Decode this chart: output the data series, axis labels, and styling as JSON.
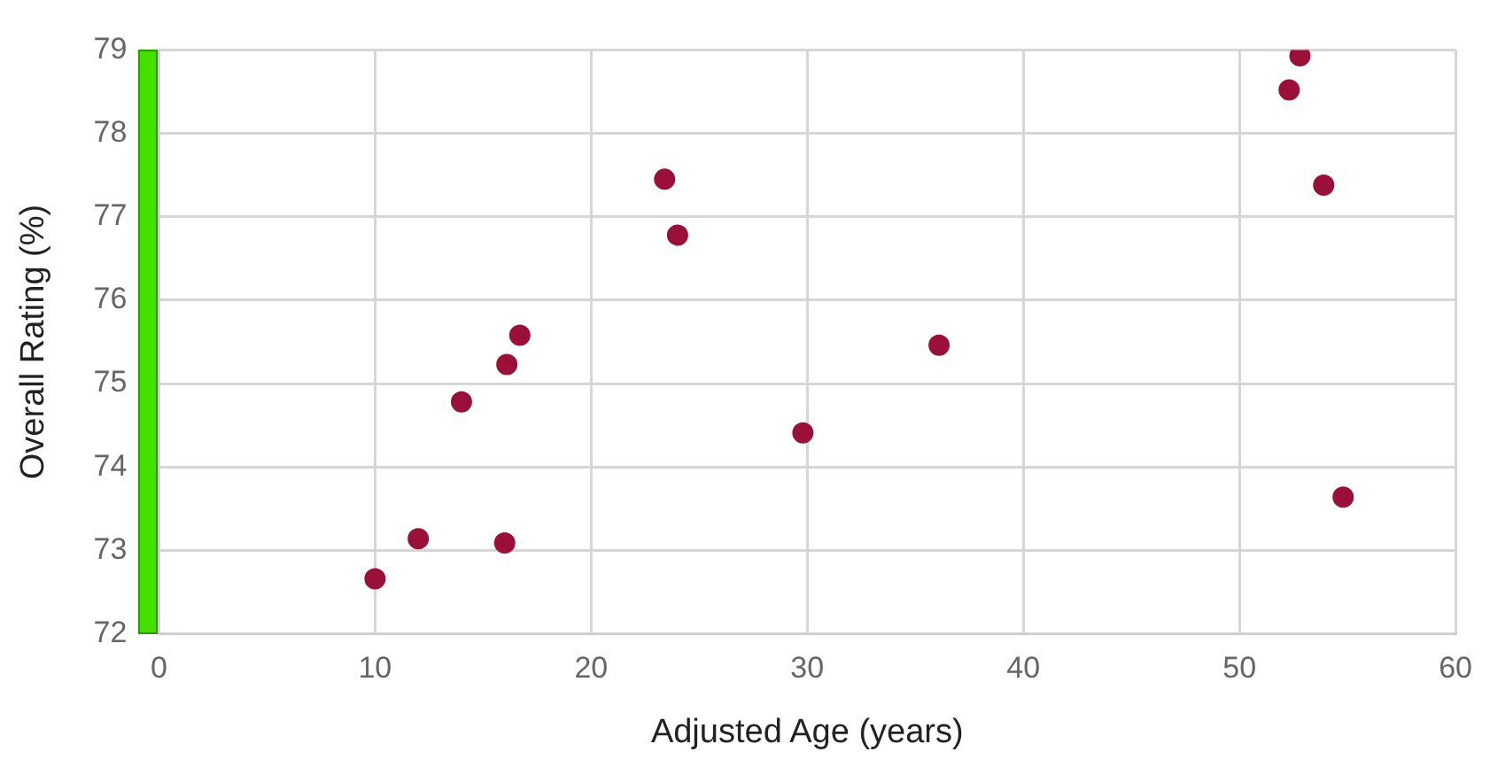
{
  "chart_data": {
    "type": "scatter",
    "xlabel": "Adjusted Age (years)",
    "ylabel": "Overall Rating (%)",
    "x": [
      10.0,
      12.0,
      16.0,
      14.0,
      16.1,
      16.7,
      23.4,
      24.0,
      29.8,
      36.1,
      52.8,
      52.3,
      53.9,
      54.8
    ],
    "series": [
      {
        "color": "#9b1038",
        "values": [
          72.66,
          73.14,
          73.09,
          74.78,
          75.23,
          75.58,
          77.45,
          76.78,
          74.41,
          75.46,
          78.93,
          78.52,
          77.38,
          73.64
        ]
      }
    ],
    "xlim": [
      0,
      60
    ],
    "xticks": [
      0,
      10,
      20,
      30,
      40,
      50,
      60
    ],
    "ylim": [
      72,
      79
    ],
    "yticks": [
      72,
      73,
      74,
      75,
      76,
      77,
      78,
      79
    ],
    "grid": true,
    "legend": false,
    "marker": "circle"
  }
}
